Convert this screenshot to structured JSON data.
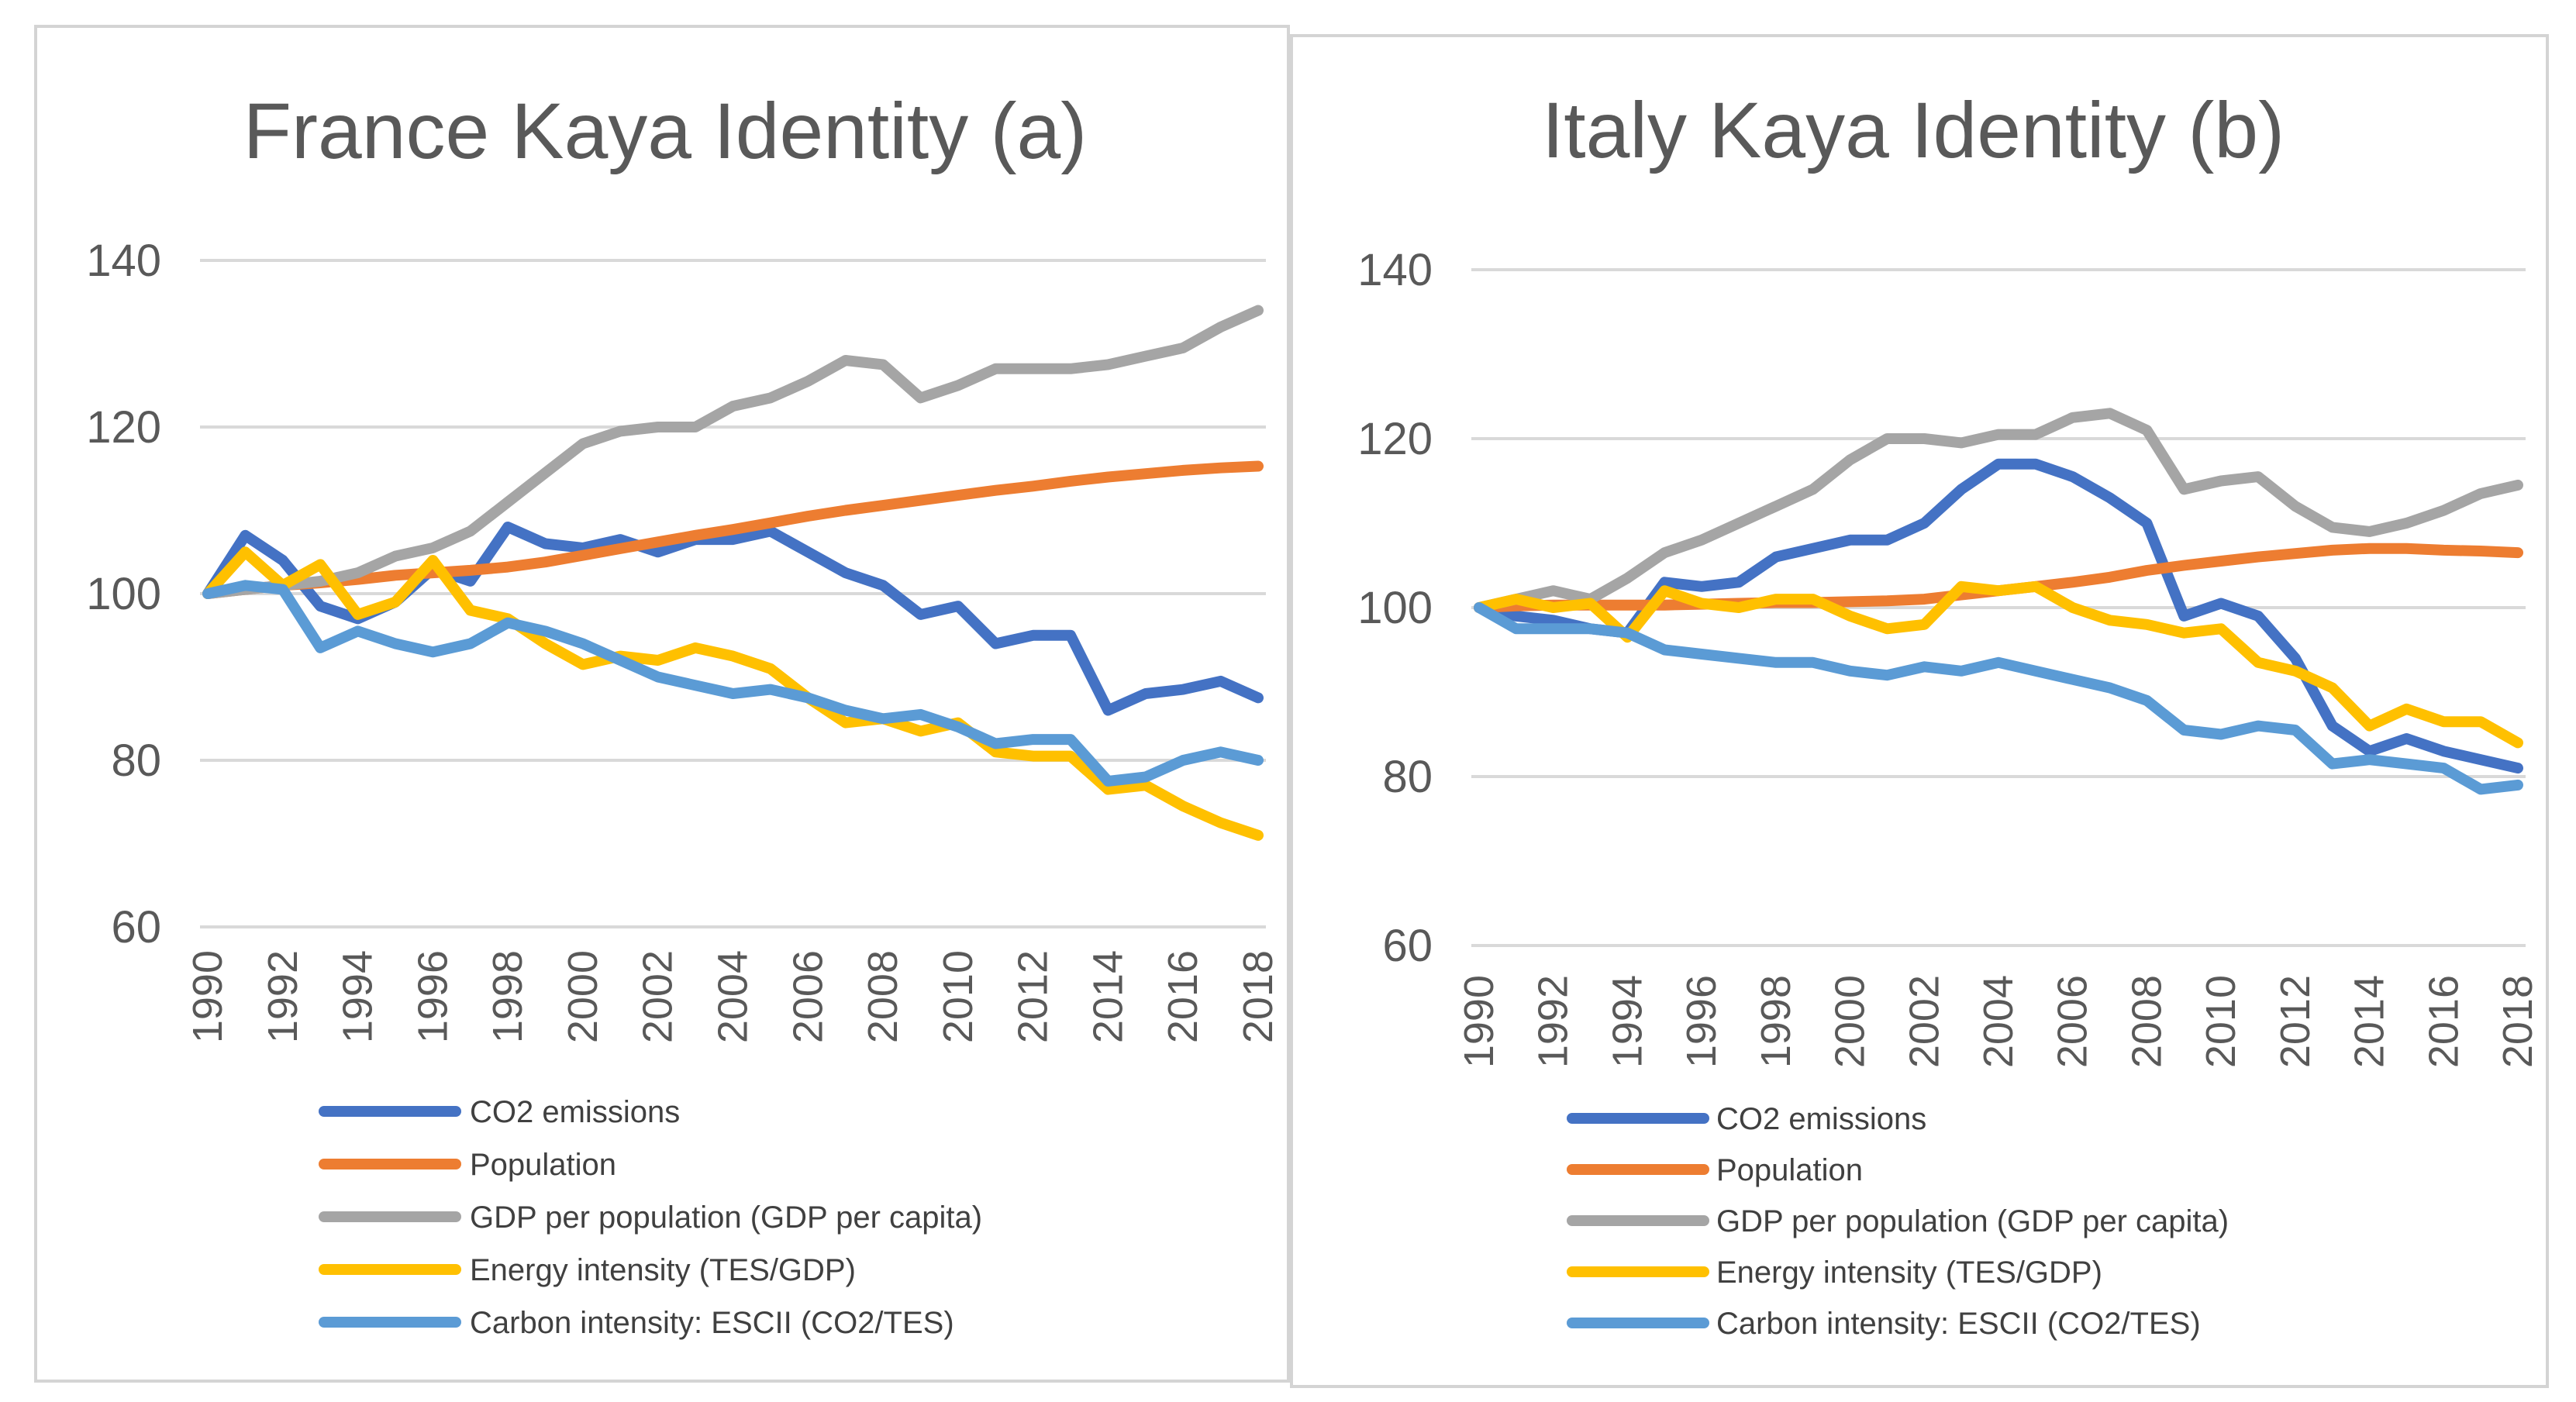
{
  "chart_data": [
    {
      "type": "line",
      "title": "France Kaya Identity (a)",
      "x": [
        1990,
        1991,
        1992,
        1993,
        1994,
        1995,
        1996,
        1997,
        1998,
        1999,
        2000,
        2001,
        2002,
        2003,
        2004,
        2005,
        2006,
        2007,
        2008,
        2009,
        2010,
        2011,
        2012,
        2013,
        2014,
        2015,
        2016,
        2017,
        2018
      ],
      "x_tick_labels": [
        "1990",
        "1992",
        "1994",
        "1996",
        "1998",
        "2000",
        "2002",
        "2004",
        "2006",
        "2008",
        "2010",
        "2012",
        "2014",
        "2016",
        "2018"
      ],
      "y_ticks": [
        60,
        80,
        100,
        120,
        140
      ],
      "ylim": [
        60,
        140
      ],
      "grid": true,
      "legend_position": "bottom",
      "series": [
        {
          "name": "CO2 emissions",
          "color": "#4472C4",
          "values": [
            100,
            107,
            104,
            98.5,
            97,
            99,
            103,
            101.5,
            108,
            106,
            105.5,
            106.5,
            105,
            106.5,
            106.5,
            107.5,
            105,
            102.5,
            101,
            97.5,
            98.5,
            94,
            95,
            95,
            86,
            88,
            88.5,
            89.5,
            87.5
          ]
        },
        {
          "name": "Population",
          "color": "#ED7D31",
          "values": [
            100,
            100.5,
            101,
            101.3,
            101.7,
            102.2,
            102.5,
            102.8,
            103.2,
            103.8,
            104.6,
            105.4,
            106.2,
            107,
            107.7,
            108.5,
            109.3,
            110,
            110.6,
            111.2,
            111.8,
            112.4,
            112.9,
            113.5,
            114,
            114.4,
            114.8,
            115.1,
            115.3
          ]
        },
        {
          "name": "GDP per population (GDP per capita)",
          "color": "#A5A5A5",
          "values": [
            100,
            100.5,
            101,
            101.5,
            102.5,
            104.5,
            105.5,
            107.5,
            111,
            114.5,
            118,
            119.5,
            120,
            120,
            122.5,
            123.5,
            125.5,
            128,
            127.5,
            123.5,
            125,
            127,
            127,
            127,
            127.5,
            128.5,
            129.5,
            132,
            134
          ]
        },
        {
          "name": "Energy intensity (TES/GDP)",
          "color": "#FFC000",
          "values": [
            100,
            105,
            101,
            103.5,
            97.5,
            99,
            104,
            98,
            97,
            94,
            91.5,
            92.5,
            92,
            93.5,
            92.5,
            91,
            87.5,
            84.5,
            85,
            83.5,
            84.5,
            81,
            80.5,
            80.5,
            76.5,
            77,
            74.5,
            72.5,
            71
          ]
        },
        {
          "name": "Carbon intensity: ESCII (CO2/TES)",
          "color": "#5B9BD5",
          "values": [
            100,
            101,
            100.5,
            93.5,
            95.5,
            94,
            93,
            94,
            96.5,
            95.5,
            94,
            92,
            90,
            89,
            88,
            88.5,
            87.5,
            86,
            85,
            85.5,
            84,
            82,
            82.5,
            82.5,
            77.5,
            78,
            80,
            81,
            80
          ]
        }
      ]
    },
    {
      "type": "line",
      "title": "Italy Kaya Identity (b)",
      "x": [
        1990,
        1991,
        1992,
        1993,
        1994,
        1995,
        1996,
        1997,
        1998,
        1999,
        2000,
        2001,
        2002,
        2003,
        2004,
        2005,
        2006,
        2007,
        2008,
        2009,
        2010,
        2011,
        2012,
        2013,
        2014,
        2015,
        2016,
        2017,
        2018
      ],
      "x_tick_labels": [
        "1990",
        "1992",
        "1994",
        "1996",
        "1998",
        "2000",
        "2002",
        "2004",
        "2006",
        "2008",
        "2010",
        "2012",
        "2014",
        "2016",
        "2018"
      ],
      "y_ticks": [
        60,
        80,
        100,
        120,
        140
      ],
      "ylim": [
        60,
        140
      ],
      "grid": true,
      "legend_position": "bottom",
      "series": [
        {
          "name": "CO2 emissions",
          "color": "#4472C4",
          "values": [
            100,
            99,
            98.5,
            97.5,
            97,
            103,
            102.5,
            103,
            106,
            107,
            108,
            108,
            110,
            114,
            117,
            117,
            115.5,
            113,
            110,
            99,
            100.5,
            99,
            94,
            86,
            83,
            84.5,
            83,
            82,
            81
          ]
        },
        {
          "name": "Population",
          "color": "#ED7D31",
          "values": [
            100,
            100.2,
            100.3,
            100.3,
            100.3,
            100.3,
            100.4,
            100.5,
            100.6,
            100.6,
            100.7,
            100.8,
            101,
            101.5,
            102,
            102.5,
            103,
            103.6,
            104.4,
            105,
            105.5,
            106,
            106.4,
            106.8,
            107,
            107,
            106.8,
            106.7,
            106.5
          ]
        },
        {
          "name": "GDP per population (GDP per capita)",
          "color": "#A5A5A5",
          "values": [
            100,
            101,
            102,
            101,
            103.5,
            106.5,
            108,
            110,
            112,
            114,
            117.5,
            120,
            120,
            119.5,
            120.5,
            120.5,
            122.5,
            123,
            121,
            114,
            115,
            115.5,
            112,
            109.5,
            109,
            110,
            111.5,
            113.5,
            114.5
          ]
        },
        {
          "name": "Energy intensity (TES/GDP)",
          "color": "#FFC000",
          "values": [
            100,
            101,
            100,
            100.5,
            96.5,
            102,
            100.5,
            100,
            101,
            101,
            99,
            97.5,
            98,
            102.5,
            102,
            102.5,
            100,
            98.5,
            98,
            97,
            97.5,
            93.5,
            92.5,
            90.5,
            86,
            88,
            86.5,
            86.5,
            84
          ]
        },
        {
          "name": "Carbon intensity: ESCII (CO2/TES)",
          "color": "#5B9BD5",
          "values": [
            100,
            97.5,
            97.5,
            97.5,
            97,
            95,
            94.5,
            94,
            93.5,
            93.5,
            92.5,
            92,
            93,
            92.5,
            93.5,
            92.5,
            91.5,
            90.5,
            89,
            85.5,
            85,
            86,
            85.5,
            81.5,
            82,
            81.5,
            81,
            78.5,
            79
          ]
        }
      ]
    }
  ]
}
